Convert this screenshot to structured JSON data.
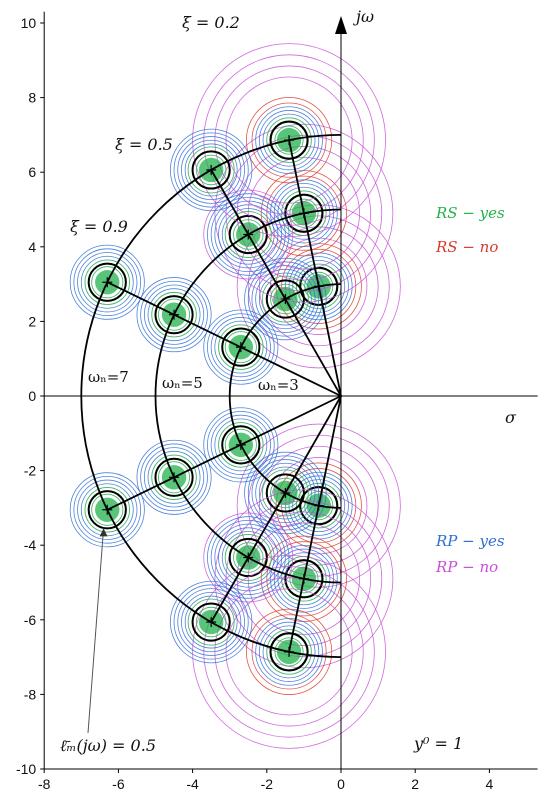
{
  "chart_data": {
    "type": "scatter",
    "title": "",
    "xlabel": "σ",
    "ylabel": "jω",
    "xlim": [
      -8,
      5.3
    ],
    "ylim": [
      -10,
      10.3
    ],
    "xticks": [
      -8,
      -6,
      -4,
      -2,
      0,
      2,
      4
    ],
    "yticks": [
      -10,
      -8,
      -6,
      -4,
      -2,
      0,
      2,
      4,
      6,
      8,
      10
    ],
    "grid": false,
    "omega_n": [
      3,
      5,
      7
    ],
    "xi": [
      0.2,
      0.5,
      0.9
    ],
    "poles": [
      {
        "w": 3,
        "xi": 0.2,
        "x": -0.6,
        "y": 2.94
      },
      {
        "w": 3,
        "xi": 0.5,
        "x": -1.5,
        "y": 2.6
      },
      {
        "w": 3,
        "xi": 0.9,
        "x": -2.7,
        "y": 1.31
      },
      {
        "w": 5,
        "xi": 0.2,
        "x": -1.0,
        "y": 4.9
      },
      {
        "w": 5,
        "xi": 0.5,
        "x": -2.5,
        "y": 4.33
      },
      {
        "w": 5,
        "xi": 0.9,
        "x": -4.5,
        "y": 2.18
      },
      {
        "w": 7,
        "xi": 0.2,
        "x": -1.4,
        "y": 6.86
      },
      {
        "w": 7,
        "xi": 0.5,
        "x": -3.5,
        "y": 6.06
      },
      {
        "w": 7,
        "xi": 0.9,
        "x": -6.3,
        "y": 3.05
      }
    ],
    "annotations": {
      "xi_02": "ξ = 0.2",
      "xi_05": "ξ = 0.5",
      "xi_09": "ξ = 0.9",
      "wn_7": "ωₙ=7",
      "wn_5": "ωₙ=5",
      "wn_3": "ωₙ=3",
      "lm": "ℓ̄ₘ(jω) = 0.5",
      "y0": "y⁰ = 1"
    },
    "legend": [
      {
        "label": "RS − yes",
        "color": "#22b24c"
      },
      {
        "label": "RS − no",
        "color": "#d93b2b"
      },
      {
        "label": "RP − yes",
        "color": "#2f6fd6"
      },
      {
        "label": "RP − no",
        "color": "#c84fd8"
      }
    ]
  }
}
